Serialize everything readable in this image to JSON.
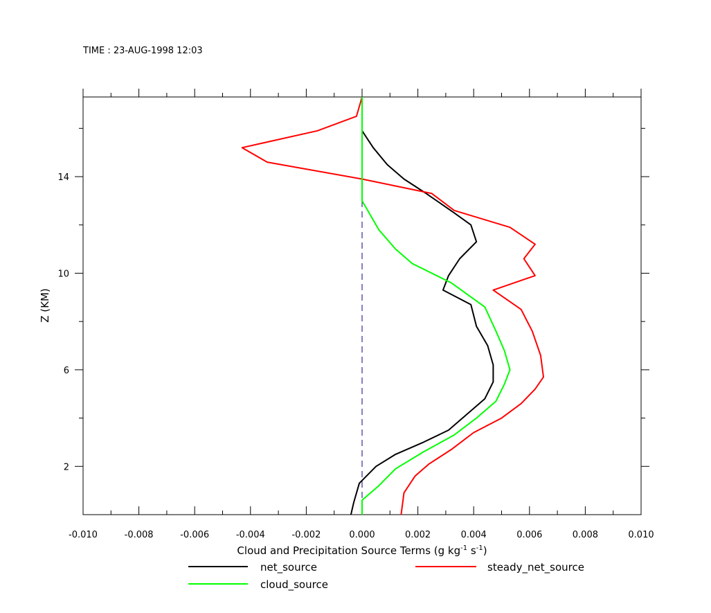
{
  "header": {
    "time_label": "TIME : 23-AUG-1998 12:03"
  },
  "chart_data": {
    "type": "line",
    "title": "",
    "xlabel": "Cloud and Precipitation Source Terms (g kg",
    "xlabel_exp1": "-1",
    "xlabel_mid": " s",
    "xlabel_exp2": "-1",
    "xlabel_end": ")",
    "ylabel": "Z (KM)",
    "xlim": [
      -0.01,
      0.01
    ],
    "ylim": [
      0,
      17.3
    ],
    "grid": false,
    "x_ticks": [
      -0.01,
      -0.008,
      -0.006,
      -0.004,
      -0.002,
      0.0,
      0.002,
      0.004,
      0.006,
      0.008,
      0.01
    ],
    "x_tick_labels": [
      "-0.010",
      "-0.008",
      "-0.006",
      "-0.004",
      "-0.002",
      "0.000",
      "0.002",
      "0.004",
      "0.006",
      "0.008",
      "0.010"
    ],
    "y_ticks": [
      2,
      6,
      10,
      14
    ],
    "y_tick_labels": [
      "2",
      "6",
      "10",
      "14"
    ],
    "reference_line": {
      "x": 0.0,
      "style": "dashed",
      "color": "#000080"
    },
    "legend_position": "bottom",
    "series": [
      {
        "name": "net_source",
        "color": "#000000",
        "points": [
          [
            -0.0004,
            0.0
          ],
          [
            -0.0003,
            0.5
          ],
          [
            -0.0001,
            1.3
          ],
          [
            0.0005,
            2.0
          ],
          [
            0.0012,
            2.5
          ],
          [
            0.0022,
            3.0
          ],
          [
            0.0031,
            3.5
          ],
          [
            0.0038,
            4.2
          ],
          [
            0.0044,
            4.8
          ],
          [
            0.0047,
            5.5
          ],
          [
            0.0047,
            6.2
          ],
          [
            0.0045,
            7.0
          ],
          [
            0.0041,
            7.8
          ],
          [
            0.0039,
            8.7
          ],
          [
            0.0029,
            9.3
          ],
          [
            0.0031,
            9.9
          ],
          [
            0.0035,
            10.6
          ],
          [
            0.0041,
            11.3
          ],
          [
            0.0039,
            12.0
          ],
          [
            0.0033,
            12.5
          ],
          [
            0.0023,
            13.3
          ],
          [
            0.0015,
            13.9
          ],
          [
            0.0009,
            14.5
          ],
          [
            0.0004,
            15.2
          ],
          [
            0.0,
            15.9
          ],
          [
            0.0,
            17.3
          ]
        ]
      },
      {
        "name": "steady_net_source",
        "color": "#ff0000",
        "points": [
          [
            0.0014,
            0.0
          ],
          [
            0.0015,
            0.9
          ],
          [
            0.0019,
            1.6
          ],
          [
            0.0024,
            2.1
          ],
          [
            0.0032,
            2.7
          ],
          [
            0.004,
            3.4
          ],
          [
            0.005,
            4.0
          ],
          [
            0.0057,
            4.6
          ],
          [
            0.0062,
            5.2
          ],
          [
            0.0065,
            5.7
          ],
          [
            0.0064,
            6.6
          ],
          [
            0.0061,
            7.6
          ],
          [
            0.0057,
            8.5
          ],
          [
            0.0047,
            9.3
          ],
          [
            0.0062,
            9.9
          ],
          [
            0.0058,
            10.6
          ],
          [
            0.0062,
            11.2
          ],
          [
            0.0053,
            11.9
          ],
          [
            0.0033,
            12.6
          ],
          [
            0.0025,
            13.3
          ],
          [
            0.0,
            13.9
          ],
          [
            -0.0034,
            14.6
          ],
          [
            -0.0043,
            15.2
          ],
          [
            -0.0016,
            15.9
          ],
          [
            -0.0002,
            16.5
          ],
          [
            0.0,
            17.3
          ]
        ]
      },
      {
        "name": "cloud_source",
        "color": "#00ff00",
        "points": [
          [
            0.0,
            0.0
          ],
          [
            0.0,
            0.6
          ],
          [
            0.0006,
            1.2
          ],
          [
            0.0012,
            1.9
          ],
          [
            0.0022,
            2.6
          ],
          [
            0.0033,
            3.3
          ],
          [
            0.0041,
            4.0
          ],
          [
            0.0048,
            4.7
          ],
          [
            0.0051,
            5.4
          ],
          [
            0.0053,
            6.0
          ],
          [
            0.0051,
            6.8
          ],
          [
            0.0048,
            7.6
          ],
          [
            0.0044,
            8.6
          ],
          [
            0.0032,
            9.6
          ],
          [
            0.0018,
            10.4
          ],
          [
            0.0012,
            11.0
          ],
          [
            0.0006,
            11.8
          ],
          [
            0.0002,
            12.6
          ],
          [
            0.0,
            13.0
          ],
          [
            0.0,
            17.3
          ]
        ]
      }
    ]
  }
}
